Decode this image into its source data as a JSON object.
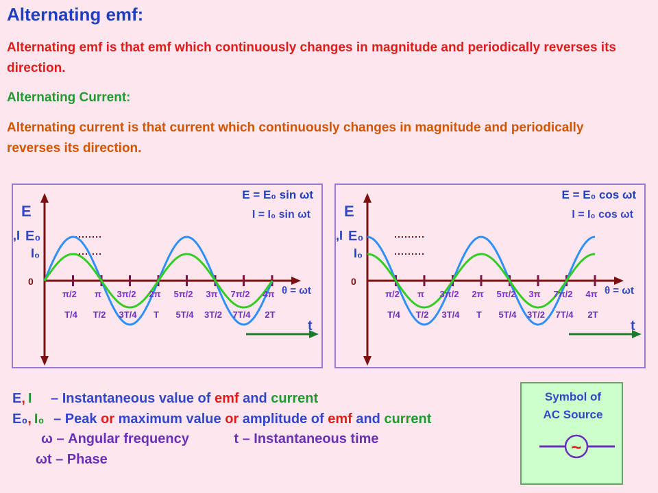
{
  "title": "Alternating emf:",
  "emf_def": "Alternating emf is that emf which continuously changes in magnitude and periodically reverses its direction.",
  "ac_heading": "Alternating Current:",
  "ac_def": "Alternating current is that current which continuously changes in magnitude and periodically reverses its direction.",
  "graph_common": {
    "axis_e": "E",
    "axis_i": ",I",
    "e0": "E₀",
    "i0": "I₀",
    "origin": "0",
    "theta": "θ = ωt",
    "t": "t",
    "angle_ticks": [
      "π/2",
      "π",
      "3π/2",
      "2π",
      "5π/2",
      "3π",
      "7π/2",
      "4π"
    ],
    "time_ticks": [
      "T/4",
      "T/2",
      "3T/4",
      "T",
      "5T/4",
      "3T/2",
      "7T/4",
      "2T"
    ]
  },
  "graphs": [
    {
      "eq_e": "E  = E₀ sin ωt",
      "eq_i": "I  = I₀ sin ωt",
      "function": "sin"
    },
    {
      "eq_e": "E  = E₀ cos ωt",
      "eq_i": "I  = I₀ cos ωt",
      "function": "cos"
    }
  ],
  "colors": {
    "emf": "#2f8ff5",
    "current": "#33cc22",
    "axis": "#7a1010",
    "tick": "#7a1540",
    "angle_label": "#7a2fd0",
    "time_label": "#6a2fb8"
  },
  "legend": {
    "l1_sym_e": "E",
    "l1_sym_comma": ",",
    "l1_sym_i": "I",
    "l1_dash": "– ",
    "l1_a": "Instantaneous value of ",
    "l1_b": "emf",
    "l1_c": " and ",
    "l1_d": "current",
    "l2_sym_e": "E₀",
    "l2_sym_comma": ",",
    "l2_sym_i": "I₀",
    "l2_dash": "– ",
    "l2_a": "Peak ",
    "l2_b": "or",
    "l2_c": " maximum value ",
    "l2_d": "or",
    "l2_e": " amplitude of ",
    "l2_f": "emf",
    "l2_g": " and ",
    "l2_h": "current",
    "l3_a": "ω – Angular frequency",
    "l3_b": "t – Instantaneous time",
    "l4": "ωt – Phase"
  },
  "symbol": {
    "line1": "Symbol of",
    "line2": "AC Source",
    "glyph": "~"
  }
}
